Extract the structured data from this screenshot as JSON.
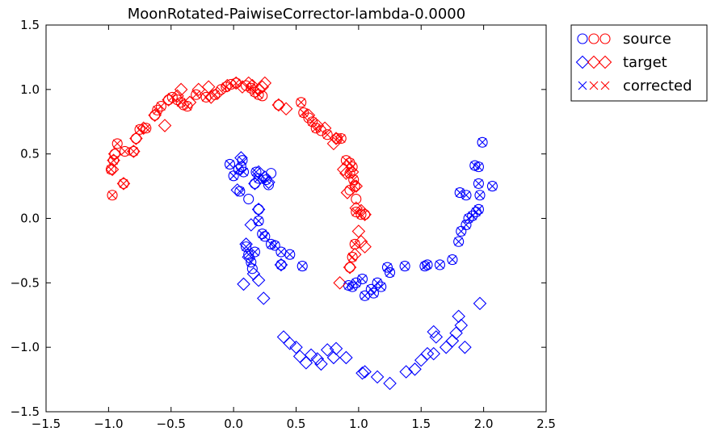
{
  "chart_data": {
    "type": "scatter",
    "title": "MoonRotated-PaiwiseCorrector-lambda-0.0000",
    "xlim": [
      -1.5,
      2.5
    ],
    "ylim": [
      -1.5,
      1.5
    ],
    "x_ticks": [
      "−1.5",
      "−1.0",
      "−0.5",
      "0.0",
      "0.5",
      "1.0",
      "1.5",
      "2.0",
      "2.5"
    ],
    "x_tick_values": [
      -1.5,
      -1.0,
      -0.5,
      0.0,
      0.5,
      1.0,
      1.5,
      2.0,
      2.5
    ],
    "y_ticks": [
      "1.5",
      "1.0",
      "0.5",
      "0.0",
      "−0.5",
      "−1.0",
      "−1.5"
    ],
    "y_tick_values": [
      1.5,
      1.0,
      0.5,
      0.0,
      -0.5,
      -1.0,
      -1.5
    ],
    "grid": false,
    "legend_position": "outside-top-right",
    "legend": [
      {
        "label": "source",
        "marker": "circle"
      },
      {
        "label": "target",
        "marker": "diamond"
      },
      {
        "label": "corrected",
        "marker": "x"
      }
    ],
    "colors": {
      "class_red": "#ff0000",
      "class_blue": "#0000ff"
    },
    "series": [
      {
        "marker": "circle",
        "color": "#ff0000",
        "points": [
          [
            -0.97,
            0.18
          ],
          [
            -0.98,
            0.38
          ],
          [
            -0.96,
            0.45
          ],
          [
            -0.95,
            0.5
          ],
          [
            -0.93,
            0.58
          ],
          [
            -0.88,
            0.27
          ],
          [
            -0.87,
            0.52
          ],
          [
            -0.8,
            0.52
          ],
          [
            -0.78,
            0.62
          ],
          [
            -0.75,
            0.69
          ],
          [
            -0.7,
            0.7
          ],
          [
            -0.63,
            0.8
          ],
          [
            -0.61,
            0.84
          ],
          [
            -0.58,
            0.87
          ],
          [
            -0.52,
            0.92
          ],
          [
            -0.49,
            0.94
          ],
          [
            -0.45,
            0.92
          ],
          [
            -0.42,
            0.9
          ],
          [
            -0.4,
            0.88
          ],
          [
            -0.37,
            0.87
          ],
          [
            -0.3,
            0.96
          ],
          [
            -0.22,
            0.94
          ],
          [
            -0.15,
            0.96
          ],
          [
            -0.1,
            1.0
          ],
          [
            -0.06,
            1.02
          ],
          [
            -0.02,
            1.04
          ],
          [
            0.02,
            1.05
          ],
          [
            0.1,
            1.03
          ],
          [
            0.14,
            1.01
          ],
          [
            0.17,
            0.98
          ],
          [
            0.2,
            0.96
          ],
          [
            0.23,
            0.95
          ],
          [
            0.36,
            0.88
          ],
          [
            0.54,
            0.9
          ],
          [
            0.56,
            0.82
          ],
          [
            0.6,
            0.78
          ],
          [
            0.63,
            0.75
          ],
          [
            0.66,
            0.7
          ],
          [
            0.7,
            0.68
          ],
          [
            0.75,
            0.65
          ],
          [
            0.83,
            0.62
          ],
          [
            0.86,
            0.62
          ],
          [
            0.9,
            0.45
          ],
          [
            0.93,
            0.43
          ],
          [
            0.95,
            0.4
          ],
          [
            0.93,
            0.35
          ],
          [
            0.96,
            0.3
          ],
          [
            0.97,
            0.25
          ],
          [
            0.93,
            0.22
          ],
          [
            0.98,
            0.15
          ],
          [
            0.98,
            0.05
          ],
          [
            1.02,
            0.03
          ],
          [
            1.05,
            0.03
          ],
          [
            0.97,
            -0.2
          ],
          [
            0.95,
            -0.3
          ],
          [
            0.93,
            -0.38
          ]
        ]
      },
      {
        "marker": "circle",
        "color": "#0000ff",
        "points": [
          [
            -0.03,
            0.42
          ],
          [
            0.0,
            0.33
          ],
          [
            0.04,
            0.38
          ],
          [
            0.06,
            0.4
          ],
          [
            0.07,
            0.45
          ],
          [
            0.08,
            0.36
          ],
          [
            0.05,
            0.21
          ],
          [
            0.12,
            0.15
          ],
          [
            0.18,
            0.36
          ],
          [
            0.17,
            0.27
          ],
          [
            0.2,
            0.31
          ],
          [
            0.26,
            0.3
          ],
          [
            0.28,
            0.26
          ],
          [
            0.3,
            0.35
          ],
          [
            0.2,
            0.07
          ],
          [
            0.2,
            -0.02
          ],
          [
            0.23,
            -0.12
          ],
          [
            0.25,
            -0.14
          ],
          [
            0.3,
            -0.2
          ],
          [
            0.33,
            -0.21
          ],
          [
            0.38,
            -0.26
          ],
          [
            0.45,
            -0.28
          ],
          [
            0.38,
            -0.36
          ],
          [
            0.55,
            -0.37
          ],
          [
            0.1,
            -0.22
          ],
          [
            0.12,
            -0.28
          ],
          [
            0.14,
            -0.34
          ],
          [
            0.15,
            -0.39
          ],
          [
            0.17,
            -0.26
          ],
          [
            0.92,
            -0.52
          ],
          [
            0.95,
            -0.53
          ],
          [
            0.98,
            -0.5
          ],
          [
            1.03,
            -0.47
          ],
          [
            1.05,
            -0.6
          ],
          [
            1.1,
            -0.55
          ],
          [
            1.12,
            -0.58
          ],
          [
            1.15,
            -0.5
          ],
          [
            1.18,
            -0.53
          ],
          [
            1.23,
            -0.38
          ],
          [
            1.25,
            -0.42
          ],
          [
            1.37,
            -0.37
          ],
          [
            1.53,
            -0.37
          ],
          [
            1.55,
            -0.36
          ],
          [
            1.65,
            -0.36
          ],
          [
            1.75,
            -0.32
          ],
          [
            1.8,
            -0.18
          ],
          [
            1.82,
            -0.1
          ],
          [
            1.86,
            -0.05
          ],
          [
            1.88,
            0.0
          ],
          [
            1.91,
            0.02
          ],
          [
            1.94,
            0.05
          ],
          [
            1.96,
            0.07
          ],
          [
            1.97,
            0.18
          ],
          [
            1.96,
            0.27
          ],
          [
            1.93,
            0.41
          ],
          [
            1.96,
            0.4
          ],
          [
            1.99,
            0.59
          ],
          [
            2.07,
            0.25
          ],
          [
            1.81,
            0.2
          ],
          [
            1.86,
            0.18
          ]
        ]
      },
      {
        "marker": "diamond",
        "color": "#ff0000",
        "points": [
          [
            -0.97,
            0.38
          ],
          [
            -0.96,
            0.45
          ],
          [
            -0.95,
            0.5
          ],
          [
            -0.88,
            0.27
          ],
          [
            -0.8,
            0.52
          ],
          [
            -0.78,
            0.62
          ],
          [
            -0.72,
            0.7
          ],
          [
            -0.63,
            0.8
          ],
          [
            -0.55,
            0.72
          ],
          [
            -0.52,
            0.92
          ],
          [
            -0.45,
            0.95
          ],
          [
            -0.42,
            1.0
          ],
          [
            -0.35,
            0.9
          ],
          [
            -0.28,
            1.0
          ],
          [
            -0.2,
            1.02
          ],
          [
            -0.18,
            0.94
          ],
          [
            -0.13,
            0.97
          ],
          [
            -0.05,
            1.03
          ],
          [
            0.02,
            1.05
          ],
          [
            0.07,
            1.02
          ],
          [
            0.12,
            1.05
          ],
          [
            0.15,
            1.03
          ],
          [
            0.2,
            1.0
          ],
          [
            0.23,
            1.02
          ],
          [
            0.25,
            1.05
          ],
          [
            0.36,
            0.88
          ],
          [
            0.42,
            0.85
          ],
          [
            0.6,
            0.8
          ],
          [
            0.67,
            0.72
          ],
          [
            0.73,
            0.7
          ],
          [
            0.8,
            0.58
          ],
          [
            0.82,
            0.62
          ],
          [
            0.88,
            0.38
          ],
          [
            0.9,
            0.35
          ],
          [
            0.95,
            0.36
          ],
          [
            0.98,
            0.25
          ],
          [
            0.91,
            0.2
          ],
          [
            0.98,
            0.08
          ],
          [
            1.02,
            0.06
          ],
          [
            1.05,
            0.03
          ],
          [
            1.0,
            -0.1
          ],
          [
            1.02,
            -0.18
          ],
          [
            1.05,
            -0.22
          ],
          [
            0.97,
            -0.28
          ],
          [
            0.93,
            -0.38
          ],
          [
            0.85,
            -0.5
          ]
        ]
      },
      {
        "marker": "diamond",
        "color": "#0000ff",
        "points": [
          [
            0.06,
            0.47
          ],
          [
            0.03,
            0.22
          ],
          [
            0.17,
            0.27
          ],
          [
            0.2,
            0.36
          ],
          [
            0.25,
            0.32
          ],
          [
            0.28,
            0.28
          ],
          [
            0.2,
            0.07
          ],
          [
            0.14,
            -0.05
          ],
          [
            0.1,
            -0.2
          ],
          [
            0.12,
            -0.3
          ],
          [
            0.16,
            -0.43
          ],
          [
            0.08,
            -0.51
          ],
          [
            0.2,
            -0.48
          ],
          [
            0.24,
            -0.62
          ],
          [
            0.38,
            -0.36
          ],
          [
            0.4,
            -0.92
          ],
          [
            0.45,
            -0.97
          ],
          [
            0.5,
            -1.0
          ],
          [
            0.53,
            -1.07
          ],
          [
            0.58,
            -1.12
          ],
          [
            0.62,
            -1.06
          ],
          [
            0.67,
            -1.09
          ],
          [
            0.7,
            -1.13
          ],
          [
            0.75,
            -1.02
          ],
          [
            0.8,
            -1.08
          ],
          [
            0.82,
            -1.01
          ],
          [
            0.9,
            -1.08
          ],
          [
            1.03,
            -1.2
          ],
          [
            1.05,
            -1.19
          ],
          [
            1.15,
            -1.23
          ],
          [
            1.25,
            -1.28
          ],
          [
            1.38,
            -1.19
          ],
          [
            1.45,
            -1.17
          ],
          [
            1.5,
            -1.1
          ],
          [
            1.55,
            -1.05
          ],
          [
            1.6,
            -1.05
          ],
          [
            1.62,
            -0.92
          ],
          [
            1.6,
            -0.88
          ],
          [
            1.7,
            -1.0
          ],
          [
            1.75,
            -0.95
          ],
          [
            1.78,
            -0.89
          ],
          [
            1.82,
            -0.83
          ],
          [
            1.8,
            -0.76
          ],
          [
            1.85,
            -1.0
          ],
          [
            1.97,
            -0.66
          ]
        ]
      },
      {
        "marker": "x",
        "color": "#0000ff",
        "points": [
          [
            -0.03,
            0.42
          ],
          [
            0.0,
            0.33
          ],
          [
            0.04,
            0.38
          ],
          [
            0.07,
            0.45
          ],
          [
            0.08,
            0.36
          ],
          [
            0.05,
            0.21
          ],
          [
            0.18,
            0.36
          ],
          [
            0.2,
            0.31
          ],
          [
            0.26,
            0.3
          ],
          [
            0.2,
            -0.02
          ],
          [
            0.23,
            -0.12
          ],
          [
            0.25,
            -0.14
          ],
          [
            0.3,
            -0.2
          ],
          [
            0.33,
            -0.21
          ],
          [
            0.38,
            -0.26
          ],
          [
            0.45,
            -0.28
          ],
          [
            0.38,
            -0.36
          ],
          [
            0.55,
            -0.37
          ],
          [
            0.1,
            -0.22
          ],
          [
            0.12,
            -0.28
          ],
          [
            0.14,
            -0.34
          ],
          [
            0.17,
            -0.26
          ],
          [
            0.92,
            -0.52
          ],
          [
            0.95,
            -0.53
          ],
          [
            0.98,
            -0.5
          ],
          [
            1.03,
            -0.47
          ],
          [
            1.05,
            -0.6
          ],
          [
            1.1,
            -0.55
          ],
          [
            1.12,
            -0.58
          ],
          [
            1.15,
            -0.5
          ],
          [
            1.18,
            -0.53
          ],
          [
            1.23,
            -0.38
          ],
          [
            1.25,
            -0.42
          ],
          [
            1.37,
            -0.37
          ],
          [
            1.53,
            -0.37
          ],
          [
            1.55,
            -0.36
          ],
          [
            1.65,
            -0.36
          ],
          [
            1.75,
            -0.32
          ],
          [
            1.8,
            -0.18
          ],
          [
            1.82,
            -0.1
          ],
          [
            1.86,
            -0.05
          ],
          [
            1.88,
            0.0
          ],
          [
            1.91,
            0.02
          ],
          [
            1.94,
            0.05
          ],
          [
            1.96,
            0.07
          ],
          [
            1.97,
            0.18
          ],
          [
            1.96,
            0.27
          ],
          [
            1.93,
            0.41
          ],
          [
            1.96,
            0.4
          ],
          [
            1.99,
            0.59
          ],
          [
            2.07,
            0.25
          ],
          [
            1.81,
            0.2
          ],
          [
            1.86,
            0.18
          ]
        ]
      },
      {
        "marker": "x",
        "color": "#ff0000",
        "points": [
          [
            -0.97,
            0.18
          ],
          [
            -0.98,
            0.38
          ],
          [
            -0.96,
            0.45
          ],
          [
            -0.93,
            0.58
          ],
          [
            -0.88,
            0.27
          ],
          [
            -0.87,
            0.52
          ],
          [
            -0.8,
            0.52
          ],
          [
            -0.75,
            0.69
          ],
          [
            -0.7,
            0.7
          ],
          [
            -0.61,
            0.84
          ],
          [
            -0.58,
            0.87
          ],
          [
            -0.49,
            0.94
          ],
          [
            -0.42,
            0.9
          ],
          [
            -0.37,
            0.87
          ],
          [
            -0.3,
            0.96
          ],
          [
            -0.22,
            0.94
          ],
          [
            -0.15,
            0.96
          ],
          [
            -0.06,
            1.02
          ],
          [
            0.02,
            1.05
          ],
          [
            0.14,
            1.01
          ],
          [
            0.17,
            0.98
          ],
          [
            0.2,
            0.96
          ],
          [
            0.54,
            0.9
          ],
          [
            0.56,
            0.82
          ],
          [
            0.63,
            0.75
          ],
          [
            0.66,
            0.7
          ],
          [
            0.75,
            0.65
          ],
          [
            0.83,
            0.62
          ],
          [
            0.86,
            0.62
          ],
          [
            0.9,
            0.45
          ],
          [
            0.93,
            0.43
          ],
          [
            0.95,
            0.4
          ],
          [
            0.93,
            0.35
          ],
          [
            0.96,
            0.3
          ],
          [
            0.97,
            0.25
          ],
          [
            0.98,
            0.05
          ],
          [
            1.02,
            0.03
          ],
          [
            0.97,
            -0.2
          ],
          [
            0.95,
            -0.3
          ]
        ]
      }
    ]
  }
}
